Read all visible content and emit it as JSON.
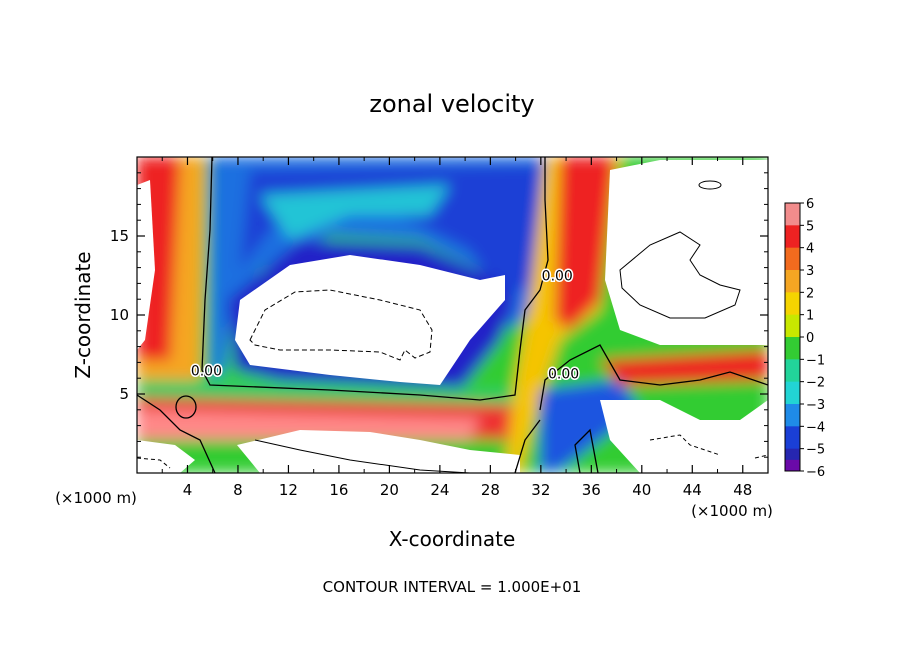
{
  "chart_data": {
    "type": "heatmap",
    "title": "zonal velocity",
    "xlabel": "X-coordinate",
    "ylabel": "Z-coordinate",
    "x_unit_left": "(×1000 m)",
    "x_unit_right": "(×1000 m)",
    "xlim": [
      0,
      50
    ],
    "ylim": [
      0,
      20
    ],
    "x_ticks": [
      "4",
      "8",
      "12",
      "16",
      "20",
      "24",
      "28",
      "32",
      "36",
      "40",
      "44",
      "48"
    ],
    "x_tick_values": [
      4,
      8,
      12,
      16,
      20,
      24,
      28,
      32,
      36,
      40,
      44,
      48
    ],
    "y_ticks": [
      "5",
      "10",
      "15"
    ],
    "y_tick_values": [
      5,
      10,
      15
    ],
    "colorbar": {
      "min": -6,
      "max": 6,
      "labels": [
        "6",
        "5",
        "4",
        "3",
        "2",
        "1",
        "0",
        "−1",
        "−2",
        "−3",
        "−4",
        "−5",
        "−6"
      ],
      "label_values": [
        6,
        5,
        4,
        3,
        2,
        1,
        0,
        -1,
        -2,
        -3,
        -4,
        -5,
        -6
      ]
    },
    "contour_labels": [
      {
        "text": "0.00",
        "x": 5.5,
        "y": 6.5
      },
      {
        "text": "0.00",
        "x": 33.3,
        "y": 12.5
      },
      {
        "text": "0.00",
        "x": 33.8,
        "y": 6.3
      }
    ],
    "contour_interval_text": "CONTOUR INTERVAL = 1.000E+01",
    "grid": false,
    "legend": "colorbar-right"
  }
}
